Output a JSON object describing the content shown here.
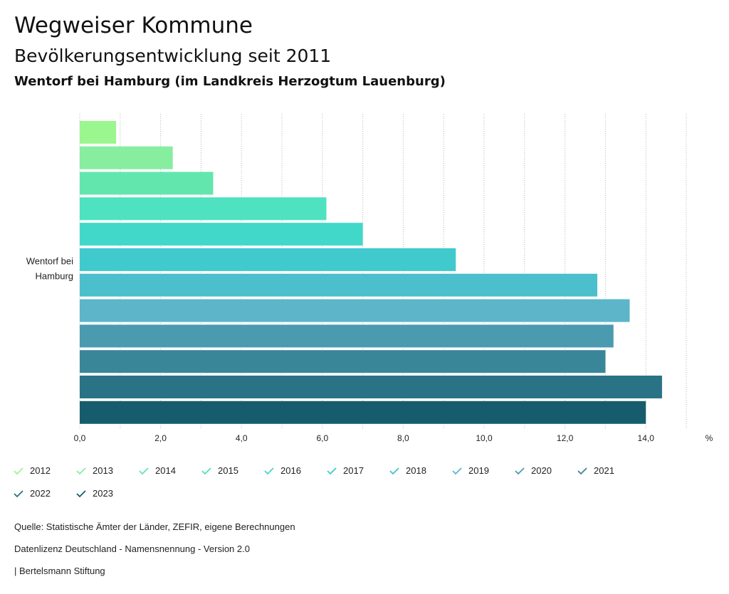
{
  "header": {
    "title": "Wegweiser Kommune",
    "subtitle": "Bevölkerungsentwicklung seit 2011",
    "region": "Wentorf bei Hamburg (im Landkreis Herzogtum Lauenburg)"
  },
  "chart_data": {
    "type": "bar",
    "orientation": "horizontal",
    "categories": [
      "Wentorf bei Hamburg"
    ],
    "series": [
      {
        "name": "2012",
        "values": [
          0.9
        ],
        "color": "#9cf68f"
      },
      {
        "name": "2013",
        "values": [
          2.3
        ],
        "color": "#87eea0"
      },
      {
        "name": "2014",
        "values": [
          3.3
        ],
        "color": "#63e6ae"
      },
      {
        "name": "2015",
        "values": [
          6.1
        ],
        "color": "#4fe2c0"
      },
      {
        "name": "2016",
        "values": [
          7.0
        ],
        "color": "#42d8c9"
      },
      {
        "name": "2017",
        "values": [
          9.3
        ],
        "color": "#40cacd"
      },
      {
        "name": "2018",
        "values": [
          12.8
        ],
        "color": "#4cbfcc"
      },
      {
        "name": "2019",
        "values": [
          13.6
        ],
        "color": "#5cb5c8"
      },
      {
        "name": "2020",
        "values": [
          13.2
        ],
        "color": "#4a9bb0"
      },
      {
        "name": "2021",
        "values": [
          13.0
        ],
        "color": "#3a8699"
      },
      {
        "name": "2022",
        "values": [
          14.4
        ],
        "color": "#2a7285"
      },
      {
        "name": "2023",
        "values": [
          14.0
        ],
        "color": "#175c6c"
      }
    ],
    "x_ticks": [
      "0,0",
      "2,0",
      "4,0",
      "6,0",
      "8,0",
      "10,0",
      "12,0",
      "14,0"
    ],
    "x_tick_values": [
      0,
      2,
      4,
      6,
      8,
      10,
      12,
      14
    ],
    "xlim": [
      0,
      15
    ],
    "unit": "%",
    "grid": true,
    "legend_position": "bottom"
  },
  "footer": {
    "source": "Quelle: Statistische Ämter der Länder, ZEFIR, eigene Berechnungen",
    "license": "Datenlizenz Deutschland - Namensnennung - Version 2.0",
    "publisher": "| Bertelsmann Stiftung"
  }
}
